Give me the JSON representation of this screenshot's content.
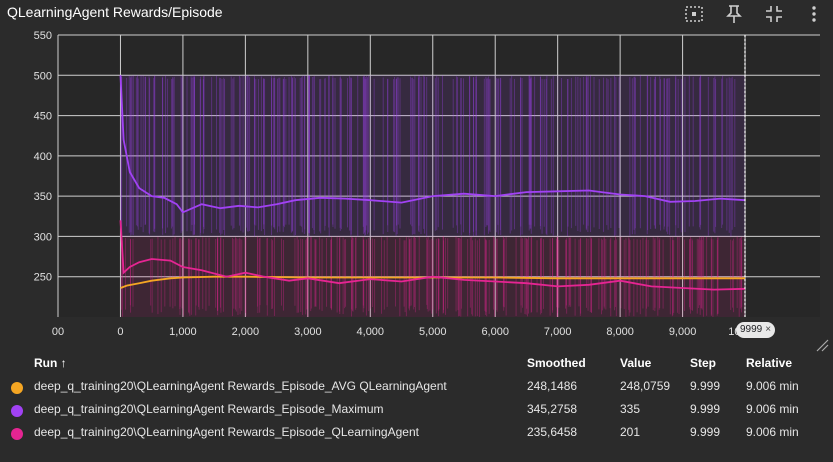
{
  "header": {
    "title": "QLearningAgent Rewards/Episode",
    "icons": [
      "fit-domain-icon",
      "pin-icon",
      "collapse-icon",
      "more-vert-icon"
    ]
  },
  "colors": {
    "background": "#2b2b2b",
    "plot_background": "#272727",
    "grid": "#bdbdbd",
    "avg": "#f5a623",
    "maximum": "#a142f4",
    "qlearning": "#e52592"
  },
  "step_badge": {
    "value": "9999",
    "close": "×"
  },
  "chart_data": {
    "type": "line",
    "title": "",
    "xlabel": "",
    "ylabel": "",
    "xlim": [
      -1000,
      11200
    ],
    "ylim": [
      200,
      550
    ],
    "x_ticks": [
      "00",
      "0",
      "1,000",
      "2,000",
      "3,000",
      "4,000",
      "5,000",
      "6,000",
      "7,000",
      "8,000",
      "9,000",
      "10,000"
    ],
    "y_ticks": [
      "250",
      "300",
      "350",
      "400",
      "450",
      "500",
      "550"
    ],
    "x_tick_values": [
      -1000,
      0,
      1000,
      2000,
      3000,
      4000,
      5000,
      6000,
      7000,
      8000,
      9000,
      10000
    ],
    "y_tick_values": [
      250,
      300,
      350,
      400,
      450,
      500,
      550
    ],
    "cursor_step": 9999,
    "series": [
      {
        "name": "deep_q_training20\\QLearningAgent Rewards_Episode_AVG QLearningAgent",
        "color": "#f5a623",
        "raw_range": [
          200,
          300
        ],
        "smoothed_x": [
          0,
          100,
          300,
          500,
          800,
          1000,
          1500,
          2000,
          3000,
          4000,
          5000,
          6000,
          7000,
          8000,
          9000,
          9999
        ],
        "smoothed_y": [
          236,
          239,
          242,
          245,
          248,
          249,
          250,
          250,
          249,
          249,
          249,
          249,
          248,
          248,
          248,
          248
        ]
      },
      {
        "name": "deep_q_training20\\QLearningAgent Rewards_Episode_Maximum",
        "color": "#a142f4",
        "raw_range": [
          300,
          500
        ],
        "smoothed_x": [
          0,
          50,
          150,
          300,
          500,
          700,
          900,
          1000,
          1300,
          1600,
          1900,
          2200,
          2500,
          2800,
          3200,
          3600,
          4000,
          4500,
          5000,
          5500,
          6000,
          6500,
          7000,
          7500,
          8000,
          8400,
          8800,
          9200,
          9600,
          9999
        ],
        "smoothed_y": [
          500,
          420,
          380,
          360,
          350,
          348,
          340,
          330,
          340,
          335,
          338,
          336,
          340,
          345,
          348,
          347,
          345,
          342,
          350,
          353,
          350,
          355,
          356,
          357,
          352,
          350,
          343,
          344,
          347,
          345
        ]
      },
      {
        "name": "deep_q_training20\\QLearningAgent Rewards_Episode_QLearningAgent",
        "color": "#e52592",
        "raw_range": [
          200,
          300
        ],
        "smoothed_x": [
          0,
          50,
          150,
          300,
          500,
          800,
          1000,
          1300,
          1700,
          2000,
          2300,
          2700,
          3000,
          3500,
          4000,
          4500,
          5000,
          5500,
          6000,
          6500,
          7000,
          7500,
          8000,
          8500,
          9000,
          9500,
          9999
        ],
        "smoothed_y": [
          320,
          255,
          262,
          268,
          272,
          270,
          262,
          258,
          250,
          255,
          250,
          245,
          248,
          242,
          247,
          244,
          250,
          246,
          244,
          242,
          238,
          240,
          245,
          238,
          236,
          234,
          235
        ]
      }
    ]
  },
  "table": {
    "columns": [
      "Run ↑",
      "Smoothed",
      "Value",
      "Step",
      "Relative"
    ],
    "rows": [
      {
        "run": "deep_q_training20\\QLearningAgent Rewards_Episode_AVG QLearningAgent",
        "smoothed": "248,1486",
        "value": "248,0759",
        "step": "9.999",
        "relative": "9.006 min",
        "color": "#f5a623"
      },
      {
        "run": "deep_q_training20\\QLearningAgent Rewards_Episode_Maximum",
        "smoothed": "345,2758",
        "value": "335",
        "step": "9.999",
        "relative": "9.006 min",
        "color": "#a142f4"
      },
      {
        "run": "deep_q_training20\\QLearningAgent Rewards_Episode_QLearningAgent",
        "smoothed": "235,6458",
        "value": "201",
        "step": "9.999",
        "relative": "9.006 min",
        "color": "#e52592"
      }
    ]
  }
}
